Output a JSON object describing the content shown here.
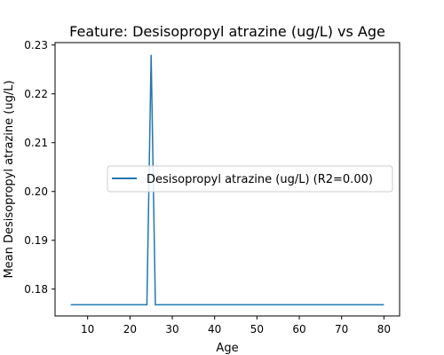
{
  "chart_data": {
    "type": "line",
    "title": "Feature: Desisopropyl atrazine (ug/L) vs Age",
    "xlabel": "Age",
    "ylabel": "Mean Desisopropyl atrazine (ug/L)",
    "xlim": [
      2.3,
      83.7
    ],
    "ylim": [
      0.1745,
      0.2305
    ],
    "xticks": [
      10,
      20,
      30,
      40,
      50,
      60,
      70,
      80
    ],
    "yticks": [
      0.18,
      0.19,
      0.2,
      0.21,
      0.22,
      0.23
    ],
    "ytick_labels": [
      "0.18",
      "0.19",
      "0.20",
      "0.21",
      "0.22",
      "0.23"
    ],
    "grid": false,
    "legend_position": "center-right",
    "series": [
      {
        "name": "Desisopropyl atrazine (ug/L) (R2=0.00)",
        "color": "#1f77b4",
        "x": [
          6,
          24,
          25,
          26,
          80
        ],
        "y": [
          0.1768,
          0.1768,
          0.228,
          0.1768,
          0.1768
        ]
      }
    ]
  }
}
